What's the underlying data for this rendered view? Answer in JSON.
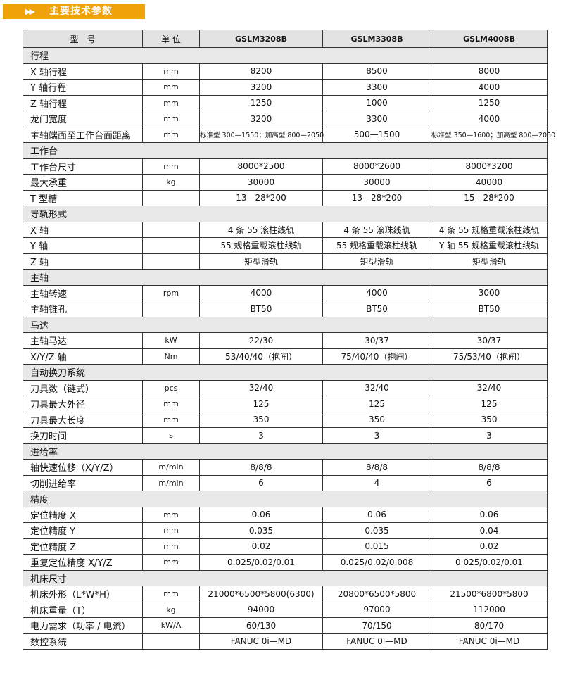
{
  "banner": {
    "title": "主要技术参数",
    "icon": "double-arrow-right-icon",
    "color": "#f0a20a"
  },
  "header": {
    "model": "型　号",
    "unit": "单 位",
    "models": [
      "GSLM3208B",
      "GSLM3308B",
      "GSLM4008B"
    ]
  },
  "rows": [
    {
      "section": "行程"
    },
    {
      "label": "X 轴行程",
      "unit": "mm",
      "values": [
        "8200",
        "8500",
        "8000"
      ]
    },
    {
      "label": "Y 轴行程",
      "unit": "mm",
      "values": [
        "3200",
        "3300",
        "4000"
      ]
    },
    {
      "label": "Z 轴行程",
      "unit": "mm",
      "values": [
        "1250",
        "1000",
        "1250"
      ]
    },
    {
      "label": "龙门宽度",
      "unit": "mm",
      "values": [
        "3200",
        "3300",
        "4000"
      ]
    },
    {
      "label": "主轴端面至工作台面距离",
      "unit": "mm",
      "values": [
        "标准型 300—1550；加高型 800—2050",
        "500—1500",
        "标准型 350—1600；加高型 800—2050"
      ],
      "small": [
        0,
        2
      ]
    },
    {
      "section": "工作台"
    },
    {
      "label": "工作台尺寸",
      "unit": "mm",
      "values": [
        "8000*2500",
        "8000*2600",
        "8000*3200"
      ]
    },
    {
      "label": "最大承重",
      "unit": "kg",
      "values": [
        "30000",
        "30000",
        "40000"
      ]
    },
    {
      "label": "T 型槽",
      "unit": "",
      "values": [
        "13—28*200",
        "13—28*200",
        "15—28*200"
      ]
    },
    {
      "section": "导轨形式"
    },
    {
      "label": "X 轴",
      "unit": "",
      "values": [
        "4 条 55 滚柱线轨",
        "4 条 55 滚珠线轨",
        "4 条 55 规格重载滚柱线轨"
      ]
    },
    {
      "label": "Y 轴",
      "unit": "",
      "values": [
        "55 规格重载滚柱线轨",
        "55 规格重载滚柱线轨",
        "Y 轴 55 规格重载滚柱线轨"
      ]
    },
    {
      "label": "Z 轴",
      "unit": "",
      "values": [
        "矩型滑轨",
        "矩型滑轨",
        "矩型滑轨"
      ]
    },
    {
      "section": "主轴"
    },
    {
      "label": "主轴转速",
      "unit": "rpm",
      "values": [
        "4000",
        "4000",
        "3000"
      ]
    },
    {
      "label": "主轴锥孔",
      "unit": "",
      "values": [
        "BT50",
        "BT50",
        "BT50"
      ]
    },
    {
      "section": "马达"
    },
    {
      "label": "主轴马达",
      "unit": "kW",
      "values": [
        "22/30",
        "30/37",
        "30/37"
      ]
    },
    {
      "label": "X/Y/Z 轴",
      "unit": "Nm",
      "values": [
        "53/40/40（抱闸）",
        "75/40/40（抱闸）",
        "75/53/40（抱闸）"
      ]
    },
    {
      "section": "自动换刀系统"
    },
    {
      "label": "刀具数（链式）",
      "unit": "pcs",
      "values": [
        "32/40",
        "32/40",
        "32/40"
      ]
    },
    {
      "label": "刀具最大外径",
      "unit": "mm",
      "values": [
        "125",
        "125",
        "125"
      ]
    },
    {
      "label": "刀具最大长度",
      "unit": "mm",
      "values": [
        "350",
        "350",
        "350"
      ]
    },
    {
      "label": "换刀时间",
      "unit": "s",
      "values": [
        "3",
        "3",
        "3"
      ]
    },
    {
      "section": "进给率"
    },
    {
      "label": "轴快速位移（X/Y/Z）",
      "unit": "m/min",
      "values": [
        "8/8/8",
        "8/8/8",
        "8/8/8"
      ]
    },
    {
      "label": "切削进给率",
      "unit": "m/min",
      "values": [
        "6",
        "4",
        "6"
      ]
    },
    {
      "section": "精度"
    },
    {
      "label": "定位精度 X",
      "unit": "mm",
      "values": [
        "0.06",
        "0.06",
        "0.06"
      ]
    },
    {
      "label": "定位精度 Y",
      "unit": "mm",
      "values": [
        "0.035",
        "0.035",
        "0.04"
      ]
    },
    {
      "label": "定位精度 Z",
      "unit": "mm",
      "values": [
        "0.02",
        "0.015",
        "0.02"
      ]
    },
    {
      "label": "重复定位精度 X/Y/Z",
      "unit": "mm",
      "values": [
        "0.025/0.02/0.01",
        "0.025/0.02/0.008",
        "0.025/0.02/0.01"
      ]
    },
    {
      "section": "机床尺寸"
    },
    {
      "label": "机床外形（L*W*H）",
      "unit": "mm",
      "values": [
        "21000*6500*5800(6300)",
        "20800*6500*5800",
        "21500*6800*5800"
      ]
    },
    {
      "label": "机床重量（T）",
      "unit": "kg",
      "values": [
        "94000",
        "97000",
        "112000"
      ]
    },
    {
      "label": "电力需求（功率 / 电流）",
      "unit": "kW/A",
      "values": [
        "60/130",
        "70/150",
        "80/170"
      ]
    },
    {
      "label": "数控系统",
      "unit": "",
      "values": [
        "FANUC 0i—MD",
        "FANUC 0i—MD",
        "FANUC 0i—MD"
      ]
    }
  ]
}
